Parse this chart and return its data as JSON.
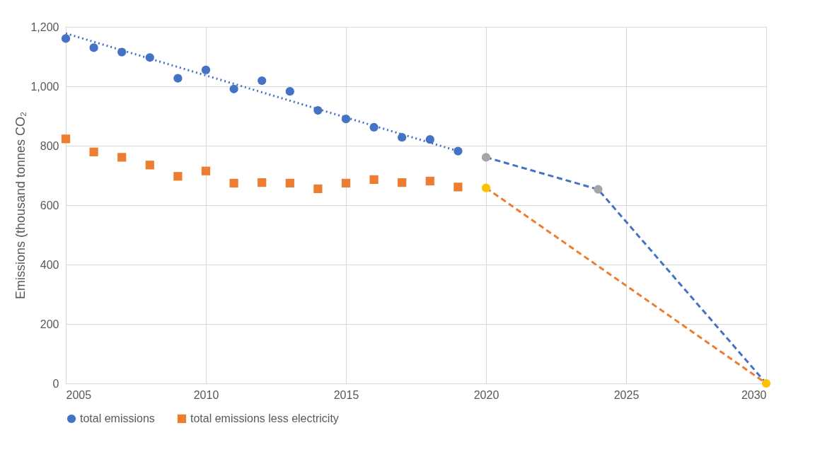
{
  "chart_data": {
    "type": "scatter",
    "ylabel": "Emissions (thousand tonnes CO₂",
    "xlim": [
      2005,
      2030
    ],
    "xticks": [
      2005,
      2010,
      2015,
      2020,
      2025,
      2030
    ],
    "ylim": [
      0,
      1200
    ],
    "yticks": [
      0,
      200,
      400,
      600,
      800,
      {
        "value": 1000,
        "label": "1,000"
      },
      {
        "value": 1200,
        "label": "1,200"
      }
    ],
    "grid": true,
    "legend": "bottom",
    "series": [
      {
        "name": "total emissions",
        "marker": "circle",
        "color": "#4472c4",
        "x": [
          2005,
          2006,
          2007,
          2008,
          2009,
          2010,
          2011,
          2012,
          2013,
          2014,
          2015,
          2016,
          2017,
          2018,
          2019
        ],
        "values": [
          1161,
          1130,
          1115,
          1097,
          1027,
          1055,
          991,
          1019,
          983,
          919,
          890,
          862,
          828,
          821,
          782
        ]
      },
      {
        "name": "total emissions less electricity",
        "marker": "square",
        "color": "#ed7d31",
        "x": [
          2005,
          2006,
          2007,
          2008,
          2009,
          2010,
          2011,
          2012,
          2013,
          2014,
          2015,
          2016,
          2017,
          2018,
          2019
        ],
        "values": [
          823,
          779,
          761,
          735,
          697,
          715,
          674,
          676,
          674,
          655,
          674,
          686,
          676,
          681,
          661
        ]
      },
      {
        "type": "line",
        "line_style": "dotted",
        "color": "#4472c4",
        "x": [
          2005,
          2019
        ],
        "values": [
          1178,
          782
        ]
      },
      {
        "type": "line",
        "line_style": "dashed",
        "color": "#4472c4",
        "x": [
          2020,
          2024,
          2030
        ],
        "values": [
          761,
          653,
          0
        ]
      },
      {
        "type": "line",
        "line_style": "dashed",
        "color": "#ed7d31",
        "x": [
          2020,
          2030
        ],
        "values": [
          658,
          0
        ]
      },
      {
        "marker": "circle",
        "color": "#a5a5a5",
        "x": [
          2020,
          2024
        ],
        "values": [
          761,
          653
        ]
      },
      {
        "marker": "circle",
        "color": "#ffc000",
        "x": [
          2020,
          2030
        ],
        "values": [
          658,
          0
        ]
      }
    ]
  }
}
